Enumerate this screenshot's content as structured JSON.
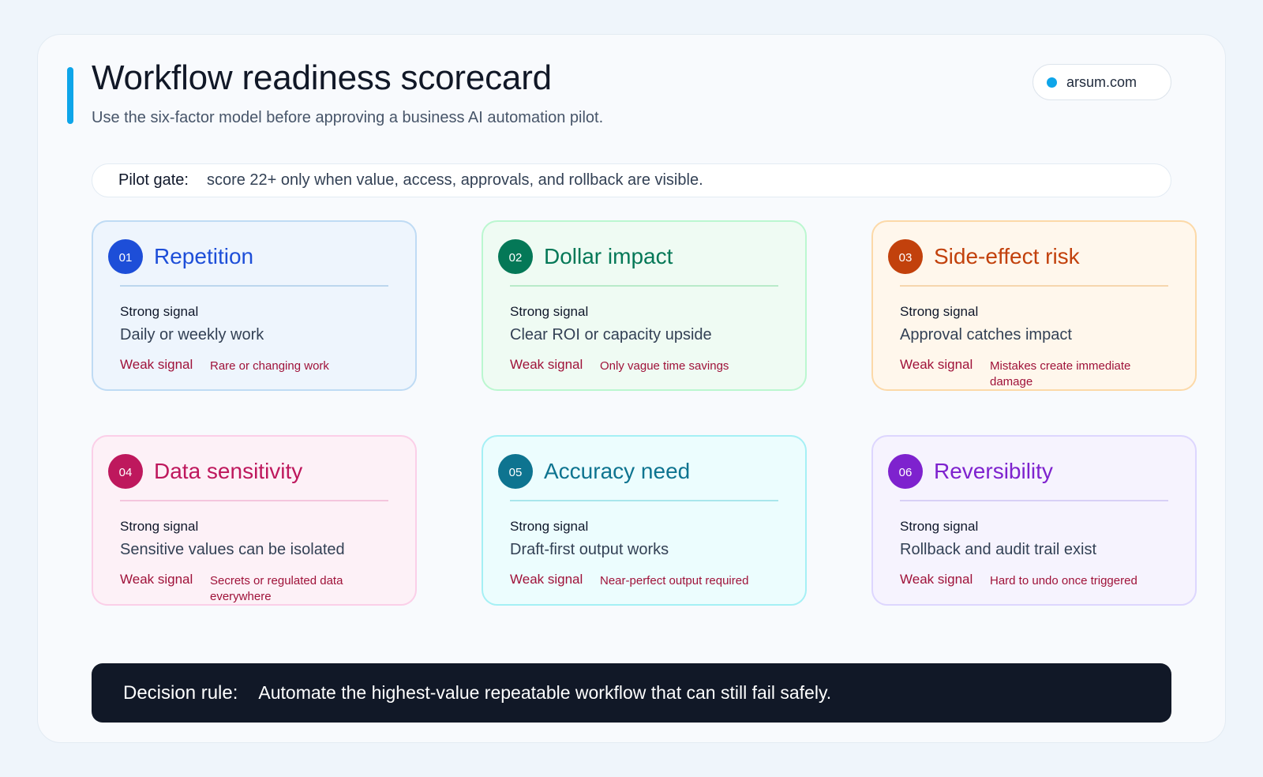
{
  "header": {
    "title": "Workflow readiness scorecard",
    "subtitle": "Use the six-factor model before approving a business AI automation pilot.",
    "brand": "arsum.com"
  },
  "gate": {
    "label": "Pilot gate:",
    "text": "score 22+ only when value, access, approvals, and rollback are visible."
  },
  "cards": [
    {
      "num": "01",
      "title": "Repetition",
      "strong_label": "Strong signal",
      "strong": "Daily or weekly work",
      "weak_label": "Weak signal",
      "weak": "Rare or changing work",
      "accent": "#1d4ed8",
      "bg": "#eef5fd",
      "border": "#bfdbf4",
      "rule": "#bcd6ee"
    },
    {
      "num": "02",
      "title": "Dollar impact",
      "strong_label": "Strong signal",
      "strong": "Clear ROI or capacity upside",
      "weak_label": "Weak signal",
      "weak": "Only vague time savings",
      "accent": "#047857",
      "bg": "#effbf3",
      "border": "#bbf7d0",
      "rule": "#b9ebc9"
    },
    {
      "num": "03",
      "title": "Side-effect risk",
      "strong_label": "Strong signal",
      "strong": "Approval catches impact",
      "weak_label": "Weak signal",
      "weak": "Mistakes create immediate damage",
      "accent": "#c2410c",
      "bg": "#fff7ec",
      "border": "#fcd9a8",
      "rule": "#f6d6ae"
    },
    {
      "num": "04",
      "title": "Data sensitivity",
      "strong_label": "Strong signal",
      "strong": "Sensitive values can be isolated",
      "weak_label": "Weak signal",
      "weak": "Secrets or regulated data everywhere",
      "accent": "#be185d",
      "bg": "#fdf1f7",
      "border": "#fbcfe8",
      "rule": "#f4c6dd"
    },
    {
      "num": "05",
      "title": "Accuracy need",
      "strong_label": "Strong signal",
      "strong": "Draft-first output works",
      "weak_label": "Weak signal",
      "weak": "Near-perfect output required",
      "accent": "#0e7490",
      "bg": "#ecfdfe",
      "border": "#a5f0f5",
      "rule": "#a9e6ec"
    },
    {
      "num": "06",
      "title": "Reversibility",
      "strong_label": "Strong signal",
      "strong": "Rollback and audit trail exist",
      "weak_label": "Weak signal",
      "weak": "Hard to undo once triggered",
      "accent": "#7e22ce",
      "bg": "#f6f3fe",
      "border": "#ddd6fe",
      "rule": "#d8d0f6"
    }
  ],
  "decision": {
    "label": "Decision rule:",
    "text": "Automate the highest-value repeatable workflow that can still fail safely."
  }
}
